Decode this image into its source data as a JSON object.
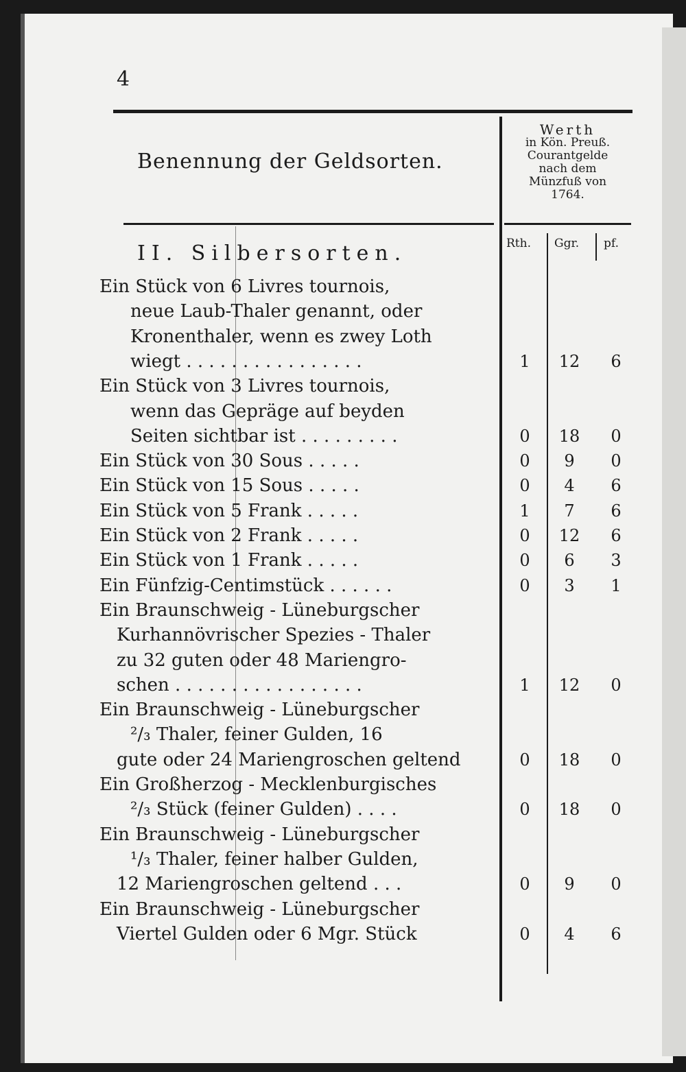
{
  "page_number": "4",
  "header": {
    "title": "Benennung der Geldsorten.",
    "value_header": [
      "Werth",
      "in Kön. Preuß.",
      "Courantgelde",
      "nach dem",
      "Münzfuß von",
      "1764."
    ],
    "columns": [
      "Rth.",
      "Ggr.",
      "pf."
    ]
  },
  "section": "II. Silbersorten.",
  "entries": [
    {
      "lines": [
        "Ein Stück von 6 Livres tournois,",
        "neue Laub-Thaler genannt, oder",
        "Kronenthaler, wenn es zwey Loth",
        "wiegt . . . . . . . . . . . . . . . ."
      ],
      "rth": "1",
      "ggr": "12",
      "pf": "6"
    },
    {
      "lines": [
        "Ein Stück von 3 Livres tournois,",
        "wenn das Gepräge auf beyden",
        "Seiten sichtbar ist . . . . . . . . ."
      ],
      "rth": "0",
      "ggr": "18",
      "pf": "0"
    },
    {
      "lines": [
        "Ein Stück von 30 Sous . . . . ."
      ],
      "rth": "0",
      "ggr": "9",
      "pf": "0"
    },
    {
      "lines": [
        "Ein Stück von 15 Sous . . . . ."
      ],
      "rth": "0",
      "ggr": "4",
      "pf": "6"
    },
    {
      "lines": [
        "Ein Stück von 5 Frank . . . . ."
      ],
      "rth": "1",
      "ggr": "7",
      "pf": "6"
    },
    {
      "lines": [
        "Ein Stück von 2 Frank . . . . ."
      ],
      "rth": "0",
      "ggr": "12",
      "pf": "6"
    },
    {
      "lines": [
        "Ein Stück von 1 Frank . . . . ."
      ],
      "rth": "0",
      "ggr": "6",
      "pf": "3"
    },
    {
      "lines": [
        "Ein Fünfzig-Centimstück . . . . . ."
      ],
      "rth": "0",
      "ggr": "3",
      "pf": "1"
    },
    {
      "lines": [
        "Ein Braunschweig - Lüneburgscher",
        "Kurhannövrischer Spezies - Thaler",
        "zu 32 guten oder 48 Mariengro-",
        "schen . . . . . . . . . . . . . . . . ."
      ],
      "rth": "1",
      "ggr": "12",
      "pf": "0"
    },
    {
      "lines": [
        "Ein Braunschweig - Lüneburgscher",
        "²/₃ Thaler, feiner Gulden, 16",
        "gute oder 24 Mariengroschen geltend"
      ],
      "rth": "0",
      "ggr": "18",
      "pf": "0"
    },
    {
      "lines": [
        "Ein Großherzog - Mecklenburgisches",
        "²/₃ Stück (feiner Gulden) . . . ."
      ],
      "rth": "0",
      "ggr": "18",
      "pf": "0"
    },
    {
      "lines": [
        "Ein Braunschweig - Lüneburgscher",
        "¹/₃ Thaler, feiner halber Gulden,",
        "12 Mariengroschen geltend . . ."
      ],
      "rth": "0",
      "ggr": "9",
      "pf": "0"
    },
    {
      "lines": [
        "Ein Braunschweig - Lüneburgscher",
        "Viertel Gulden oder 6 Mgr. Stück"
      ],
      "rth": "0",
      "ggr": "4",
      "pf": "6"
    }
  ]
}
